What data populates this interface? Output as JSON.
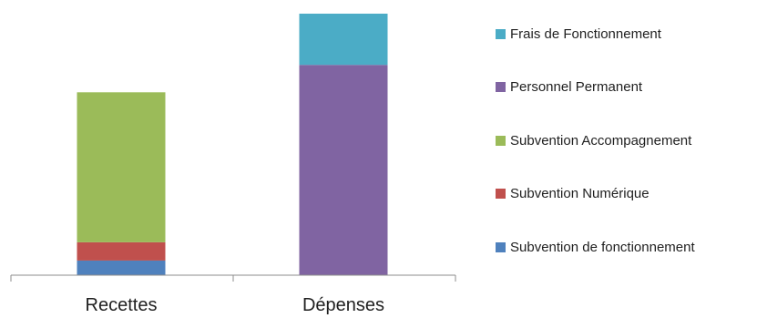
{
  "chart_data": {
    "type": "bar",
    "stacked": true,
    "categories": [
      "Recettes",
      "Dépenses"
    ],
    "series": [
      {
        "name": "Subvention de fonctionnement",
        "color": "#4f81bd",
        "values": [
          8,
          0
        ]
      },
      {
        "name": "Subvention Numérique",
        "color": "#c0504d",
        "values": [
          10,
          0
        ]
      },
      {
        "name": "Subvention Accompagnement",
        "color": "#9bbb59",
        "values": [
          82,
          0
        ]
      },
      {
        "name": "Personnel Permanent",
        "color": "#8064a2",
        "values": [
          0,
          115
        ]
      },
      {
        "name": "Frais de Fonctionnement",
        "color": "#4bacc6",
        "values": [
          0,
          28
        ]
      }
    ],
    "ylim": [
      0,
      143
    ],
    "yaxis_visible": false,
    "grid": false,
    "legend_position": "right"
  }
}
